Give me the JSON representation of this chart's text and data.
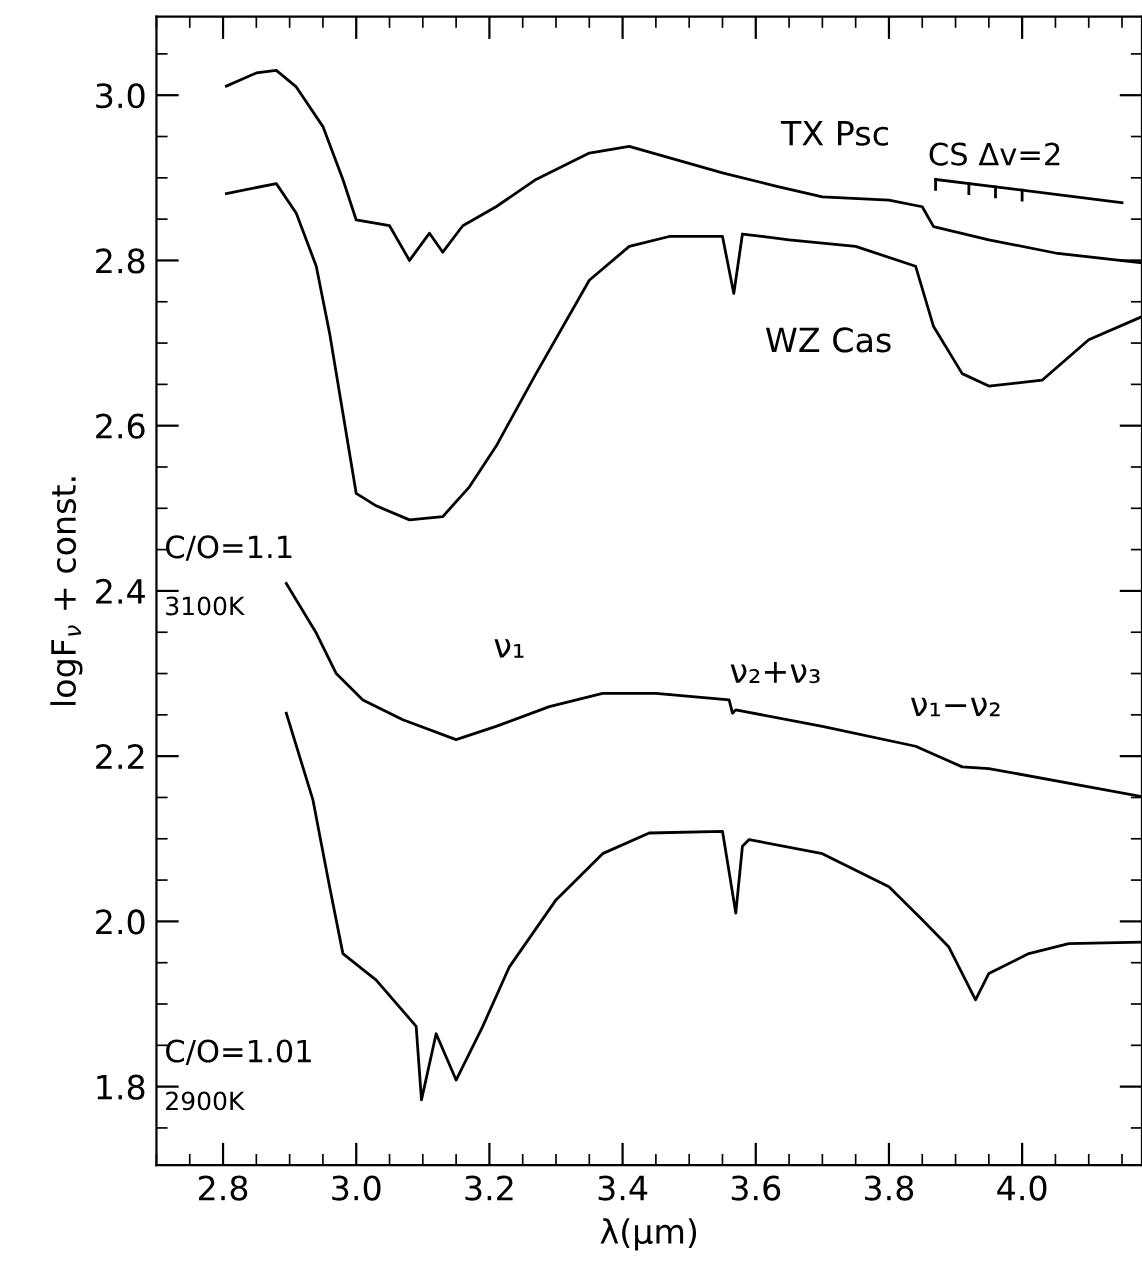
{
  "chart_data": {
    "type": "line",
    "xlabel": "λ(μm)",
    "ylabel": "logF$_{ν}$ + const.",
    "xlim": [
      2.7,
      4.18
    ],
    "ylim": [
      1.705,
      3.095
    ],
    "xticks": [
      2.8,
      {
        "value": 3.0,
        "label": "3.0"
      },
      3.2,
      3.4,
      3.6,
      3.8,
      {
        "value": 4.0,
        "label": "4.0"
      }
    ],
    "yticks": [
      1.8,
      {
        "value": 2.0,
        "label": "2.0"
      },
      2.2,
      2.4,
      2.6,
      2.8,
      {
        "value": 3.0,
        "label": "3.0"
      }
    ],
    "grid": false,
    "legend": false,
    "line_style": "solid",
    "marker": "none",
    "series": [
      {
        "color": "#000000",
        "x": [
          2.805,
          2.85,
          2.88,
          2.91,
          2.95,
          2.98,
          3.0,
          3.05,
          3.08,
          3.11,
          3.13,
          3.16,
          3.21,
          3.27,
          3.35,
          3.41,
          3.48,
          3.55,
          3.63,
          3.7,
          3.8,
          3.85,
          3.867,
          3.95,
          4.05,
          4.18
        ],
        "values": [
          3.011,
          3.027,
          3.03,
          3.01,
          2.962,
          2.898,
          2.849,
          2.842,
          2.8,
          2.833,
          2.81,
          2.842,
          2.865,
          2.898,
          2.93,
          2.938,
          2.922,
          2.906,
          2.89,
          2.877,
          2.873,
          2.865,
          2.841,
          2.825,
          2.809,
          2.797
        ]
      },
      {
        "color": "#000000",
        "x": [
          2.805,
          2.88,
          2.91,
          2.94,
          2.96,
          2.98,
          3.0,
          3.03,
          3.08,
          3.13,
          3.17,
          3.21,
          3.27,
          3.35,
          3.41,
          3.47,
          3.55,
          3.567,
          3.58,
          3.65,
          3.75,
          3.84,
          3.867,
          3.91,
          3.95,
          4.03,
          4.1,
          4.18
        ],
        "values": [
          2.881,
          2.893,
          2.857,
          2.793,
          2.712,
          2.615,
          2.518,
          2.503,
          2.486,
          2.49,
          2.526,
          2.575,
          2.663,
          2.776,
          2.817,
          2.829,
          2.829,
          2.76,
          2.832,
          2.825,
          2.817,
          2.793,
          2.72,
          2.663,
          2.648,
          2.655,
          2.704,
          2.732
        ]
      },
      {
        "color": "#000000",
        "x": [
          2.895,
          2.94,
          2.97,
          3.01,
          3.07,
          3.15,
          3.21,
          3.29,
          3.37,
          3.45,
          3.56,
          3.565,
          3.57,
          3.7,
          3.84,
          3.91,
          3.95,
          4.18
        ],
        "values": [
          2.409,
          2.349,
          2.3,
          2.268,
          2.244,
          2.22,
          2.236,
          2.26,
          2.276,
          2.276,
          2.268,
          2.252,
          2.256,
          2.236,
          2.212,
          2.187,
          2.185,
          2.151
        ]
      },
      {
        "color": "#000000",
        "x": [
          2.895,
          2.935,
          2.96,
          2.98,
          3.03,
          3.09,
          3.098,
          3.12,
          3.15,
          3.19,
          3.23,
          3.3,
          3.37,
          3.44,
          3.55,
          3.57,
          3.58,
          3.59,
          3.7,
          3.8,
          3.85,
          3.89,
          3.93,
          3.95,
          4.01,
          4.07,
          4.18
        ],
        "values": [
          2.252,
          2.147,
          2.042,
          1.961,
          1.929,
          1.873,
          1.784,
          1.864,
          1.808,
          1.873,
          1.945,
          2.026,
          2.082,
          2.107,
          2.109,
          2.01,
          2.091,
          2.099,
          2.082,
          2.042,
          2.002,
          1.969,
          1.905,
          1.937,
          1.961,
          1.973,
          1.975
        ]
      }
    ],
    "annotations": [
      "TX Psc",
      "CS Δv=2",
      "WZ Cas",
      "C/O=1.1",
      "3100K",
      "ν₁",
      "ν₂+ν₃",
      "ν₁−ν₂",
      "C/O=1.01",
      "2900K"
    ]
  }
}
